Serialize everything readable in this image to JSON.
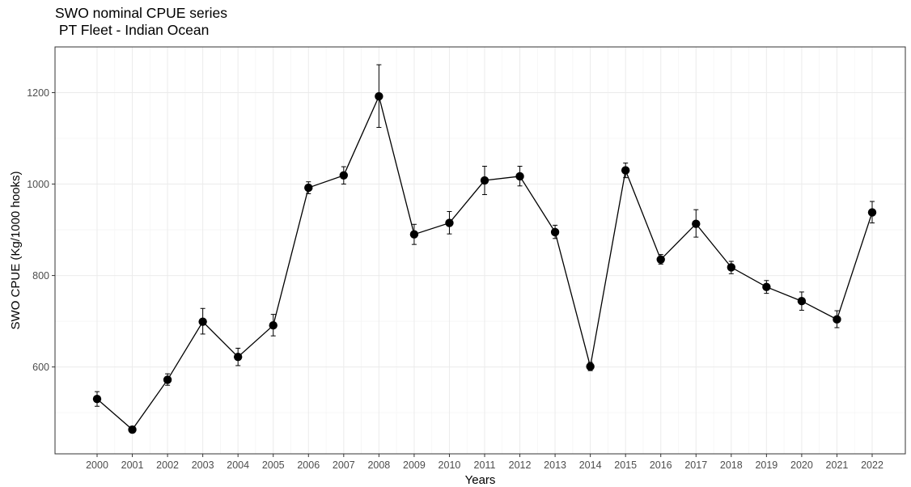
{
  "chart_data": {
    "type": "line",
    "title": "SWO nominal CPUE series",
    "subtitle": " PT Fleet - Indian Ocean",
    "xlabel": "Years",
    "ylabel": "SWO CPUE (Kg/1000 hooks)",
    "x": [
      "2000",
      "2001",
      "2002",
      "2003",
      "2004",
      "2005",
      "2006",
      "2007",
      "2008",
      "2009",
      "2010",
      "2011",
      "2012",
      "2013",
      "2014",
      "2015",
      "2016",
      "2017",
      "2018",
      "2019",
      "2020",
      "2021",
      "2022"
    ],
    "series": [
      {
        "values": [
          530,
          463,
          572,
          699,
          622,
          691,
          992,
          1019,
          1192,
          890,
          915,
          1008,
          1017,
          895,
          601,
          1030,
          835,
          913,
          818,
          775,
          744,
          704,
          938
        ],
        "lower": [
          514,
          456,
          560,
          672,
          603,
          668,
          979,
          1000,
          1124,
          868,
          891,
          977,
          996,
          881,
          592,
          1014,
          825,
          884,
          804,
          761,
          724,
          686,
          915
        ],
        "upper": [
          546,
          470,
          585,
          728,
          641,
          715,
          1005,
          1038,
          1261,
          912,
          940,
          1039,
          1039,
          910,
          610,
          1046,
          846,
          944,
          831,
          789,
          764,
          723,
          962
        ]
      }
    ],
    "ylim": [
      410,
      1300
    ],
    "yticks": [
      600,
      800,
      1000,
      1200
    ],
    "grid": true,
    "colors": {
      "line": "#000000",
      "point": "#000000",
      "grid_major": "#ebebeb",
      "grid_minor": "#f5f5f5",
      "panel_border": "#333333",
      "tick_text": "#4d4d4d"
    }
  }
}
